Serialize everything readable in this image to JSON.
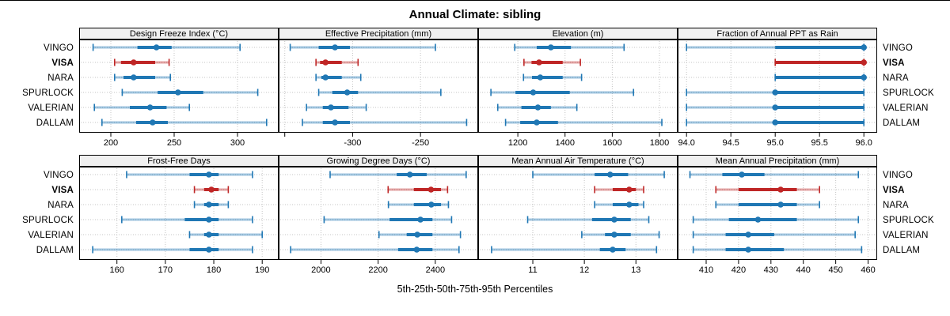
{
  "title": "Annual Climate: sibling",
  "footer_label": "5th-25th-50th-75th-95th Percentiles",
  "sites": [
    "VINGO",
    "VISA",
    "NARA",
    "SPURLOCK",
    "VALERIAN",
    "DALLAM"
  ],
  "highlight_site": "VISA",
  "colors": {
    "series": "#1f77b4",
    "highlight": "#bf2626",
    "grid": "#c4c4c4",
    "panel_header_bg": "#f0f0f0",
    "border": "#000000"
  },
  "percentiles": [
    5,
    25,
    50,
    75,
    95
  ],
  "chart_data": {
    "type": "scatter",
    "style": "horizontal percentile interval plot: light line = 5th-95th with end caps, thick line = 25th-75th, dot = 50th (median)",
    "layout": {
      "grid": "2 rows x 4 columns",
      "grid_on": true,
      "highlight_color_site": "VISA"
    },
    "panels": [
      {
        "title": "Design Freeze Index (°C)",
        "xlim": [
          175,
          332.5
        ],
        "ticks": {
          "values": [
            200,
            250,
            300
          ],
          "labels": [
            "200",
            "250",
            "300"
          ]
        },
        "series": [
          {
            "site": "VINGO",
            "values": [
              186,
              221,
              236,
              248,
              302
            ]
          },
          {
            "site": "VISA",
            "values": [
              203,
              208,
              218,
              235,
              246
            ]
          },
          {
            "site": "NARA",
            "values": [
              203,
              210,
              218,
              235,
              247
            ]
          },
          {
            "site": "SPURLOCK",
            "values": [
              209,
              237,
              253,
              273,
              316
            ]
          },
          {
            "site": "VALERIAN",
            "values": [
              187,
              215,
              231,
              244,
              262
            ]
          },
          {
            "site": "DALLAM",
            "values": [
              193,
              220,
              233,
              245,
              323
            ]
          }
        ]
      },
      {
        "title": "Effective Precipitation (mm)",
        "xlim": [
          -354.5,
          -207.5
        ],
        "ticks": {
          "values": [
            -350,
            -300,
            -250
          ],
          "labels": [
            "",
            "-300",
            "-250"
          ]
        },
        "series": [
          {
            "site": "VINGO",
            "values": [
              -346,
              -325,
              -313,
              -302,
              -239
            ]
          },
          {
            "site": "VISA",
            "values": [
              -327,
              -324,
              -320,
              -308,
              -296
            ]
          },
          {
            "site": "NARA",
            "values": [
              -327,
              -323,
              -320,
              -308,
              -294
            ]
          },
          {
            "site": "SPURLOCK",
            "values": [
              -325,
              -315,
              -304,
              -296,
              -235
            ]
          },
          {
            "site": "VALERIAN",
            "values": [
              -334,
              -322,
              -316,
              -303,
              -290
            ]
          },
          {
            "site": "DALLAM",
            "values": [
              -337,
              -322,
              -313,
              -302,
              -216
            ]
          }
        ]
      },
      {
        "title": "Elevation (m)",
        "xlim": [
          1032,
          1877
        ],
        "ticks": {
          "values": [
            1200,
            1400,
            1600,
            1800
          ],
          "labels": [
            "1200",
            "1400",
            "1600",
            "1800"
          ]
        },
        "series": [
          {
            "site": "VINGO",
            "values": [
              1187,
              1280,
              1340,
              1425,
              1650
            ]
          },
          {
            "site": "VISA",
            "values": [
              1226,
              1258,
              1290,
              1390,
              1465
            ]
          },
          {
            "site": "NARA",
            "values": [
              1224,
              1260,
              1295,
              1390,
              1470
            ]
          },
          {
            "site": "SPURLOCK",
            "values": [
              1086,
              1190,
              1265,
              1420,
              1690
            ]
          },
          {
            "site": "VALERIAN",
            "values": [
              1115,
              1215,
              1285,
              1340,
              1450
            ]
          },
          {
            "site": "DALLAM",
            "values": [
              1148,
              1210,
              1280,
              1370,
              1810
            ]
          }
        ]
      },
      {
        "title": "Fraction of Annual PPT as Rain",
        "xlim": [
          93.9,
          96.15
        ],
        "ticks": {
          "values": [
            94.0,
            94.5,
            95.0,
            95.5,
            96.0
          ],
          "labels": [
            "94.0",
            "94.5",
            "95.0",
            "95.5",
            "96.0"
          ]
        },
        "series": [
          {
            "site": "VINGO",
            "values": [
              94,
              95,
              96,
              96,
              96
            ]
          },
          {
            "site": "VISA",
            "values": [
              95,
              95,
              96,
              96,
              96
            ]
          },
          {
            "site": "NARA",
            "values": [
              95,
              95,
              96,
              96,
              96
            ]
          },
          {
            "site": "SPURLOCK",
            "values": [
              94,
              95,
              95,
              96,
              96
            ]
          },
          {
            "site": "VALERIAN",
            "values": [
              94,
              95,
              95,
              96,
              96
            ]
          },
          {
            "site": "DALLAM",
            "values": [
              94,
              95,
              95,
              96,
              96
            ]
          }
        ]
      },
      {
        "title": "Frost-Free Days",
        "xlim": [
          152.2,
          193.4
        ],
        "ticks": {
          "values": [
            160,
            170,
            180,
            190
          ],
          "labels": [
            "160",
            "170",
            "180",
            "190"
          ]
        },
        "series": [
          {
            "site": "VINGO",
            "values": [
              162,
              175,
              179,
              181,
              188
            ]
          },
          {
            "site": "VISA",
            "values": [
              176,
              178,
              179.5,
              181,
              183
            ]
          },
          {
            "site": "NARA",
            "values": [
              176,
              178,
              179,
              181,
              183
            ]
          },
          {
            "site": "SPURLOCK",
            "values": [
              161,
              174,
              179,
              181,
              188
            ]
          },
          {
            "site": "VALERIAN",
            "values": [
              175,
              178,
              179,
              181,
              190
            ]
          },
          {
            "site": "DALLAM",
            "values": [
              155,
              175,
              179,
              181,
              188
            ]
          }
        ]
      },
      {
        "title": "Growing Degree Days (°C)",
        "xlim": [
          1852,
          2550
        ],
        "ticks": {
          "values": [
            2000,
            2200,
            2400
          ],
          "labels": [
            "2000",
            "2200",
            "2400"
          ]
        },
        "series": [
          {
            "site": "VINGO",
            "values": [
              2032,
              2265,
              2311,
              2370,
              2508
            ]
          },
          {
            "site": "VISA",
            "values": [
              2235,
              2325,
              2385,
              2420,
              2443
            ]
          },
          {
            "site": "NARA",
            "values": [
              2236,
              2325,
              2386,
              2420,
              2446
            ]
          },
          {
            "site": "SPURLOCK",
            "values": [
              2011,
              2240,
              2348,
              2390,
              2457
            ]
          },
          {
            "site": "VALERIAN",
            "values": [
              2203,
              2300,
              2337,
              2390,
              2488
            ]
          },
          {
            "site": "DALLAM",
            "values": [
              1894,
              2270,
              2335,
              2390,
              2483
            ]
          }
        ]
      },
      {
        "title": "Mean Annual Air Temperature (°C)",
        "xlim": [
          9.94,
          13.81
        ],
        "ticks": {
          "values": [
            11,
            12,
            13
          ],
          "labels": [
            "11",
            "12",
            "13"
          ]
        },
        "series": [
          {
            "site": "VINGO",
            "values": [
              11.0,
              12.2,
              12.5,
              12.85,
              13.55
            ]
          },
          {
            "site": "VISA",
            "values": [
              12.2,
              12.55,
              12.87,
              13.0,
              13.15
            ]
          },
          {
            "site": "NARA",
            "values": [
              12.2,
              12.55,
              12.87,
              13.05,
              13.15
            ]
          },
          {
            "site": "SPURLOCK",
            "values": [
              10.9,
              12.15,
              12.58,
              12.9,
              13.25
            ]
          },
          {
            "site": "VALERIAN",
            "values": [
              11.95,
              12.4,
              12.58,
              12.9,
              13.45
            ]
          },
          {
            "site": "DALLAM",
            "values": [
              10.2,
              12.3,
              12.55,
              12.8,
              13.4
            ]
          }
        ]
      },
      {
        "title": "Mean Annual Precipitation (mm)",
        "xlim": [
          401.2,
          462.8
        ],
        "ticks": {
          "values": [
            410,
            420,
            430,
            440,
            450,
            460
          ],
          "labels": [
            "410",
            "420",
            "430",
            "440",
            "450",
            "460"
          ]
        },
        "series": [
          {
            "site": "VINGO",
            "values": [
              405,
              415,
              421,
              428,
              457
            ]
          },
          {
            "site": "VISA",
            "values": [
              413,
              420,
              433,
              438,
              445
            ]
          },
          {
            "site": "NARA",
            "values": [
              413,
              420,
              433,
              438,
              445
            ]
          },
          {
            "site": "SPURLOCK",
            "values": [
              406,
              417,
              426,
              438,
              457
            ]
          },
          {
            "site": "VALERIAN",
            "values": [
              406,
              416,
              423,
              431,
              456
            ]
          },
          {
            "site": "DALLAM",
            "values": [
              406,
              416,
              423,
              434,
              458
            ]
          }
        ]
      }
    ]
  }
}
